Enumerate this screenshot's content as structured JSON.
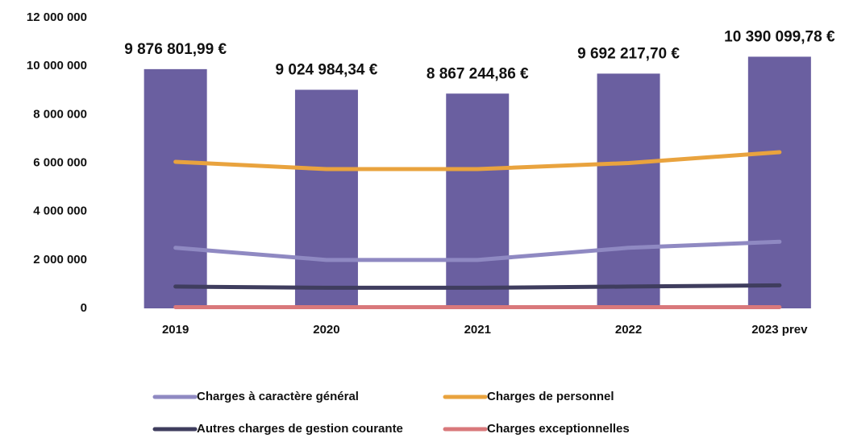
{
  "chart_data": {
    "type": "combo",
    "categories": [
      "2019",
      "2020",
      "2021",
      "2022",
      "2023 prev"
    ],
    "values": [
      9876801.99,
      9024984.34,
      8867244.86,
      9692217.7,
      10390099.78
    ],
    "value_labels": [
      "9 876 801,99 €",
      "9 024 984,34 €",
      "8 867 244,86 €",
      "9 692 217,70 €",
      "10 390 099,78 €"
    ],
    "color": "#6a5fa0",
    "series": [
      {
        "name": "Charges à caractère général",
        "color": "#8f89c2",
        "values": [
          2500000,
          2000000,
          2000000,
          2500000,
          2750000
        ]
      },
      {
        "name": "Charges de personnel",
        "color": "#e9a33e",
        "values": [
          6050000,
          5750000,
          5750000,
          6000000,
          6450000
        ]
      },
      {
        "name": "Autres charges de gestion courante",
        "color": "#3f3d5e",
        "values": [
          900000,
          850000,
          850000,
          900000,
          950000
        ]
      },
      {
        "name": "Charges exceptionnelles",
        "color": "#d9787b",
        "values": [
          50000,
          50000,
          50000,
          50000,
          50000
        ]
      }
    ],
    "ylim": [
      0,
      12000000
    ],
    "yticks": [
      0,
      {
        "value": 2000000,
        "label": "2 000 000"
      },
      {
        "value": 4000000,
        "label": "4 000 000"
      },
      {
        "value": 6000000,
        "label": "6 000 000"
      },
      {
        "value": 8000000,
        "label": "8 000 000"
      },
      {
        "value": 10000000,
        "label": "10 000 000"
      },
      {
        "value": 12000000,
        "label": "12 000 000"
      }
    ],
    "grid": false,
    "legend": "bottom"
  }
}
